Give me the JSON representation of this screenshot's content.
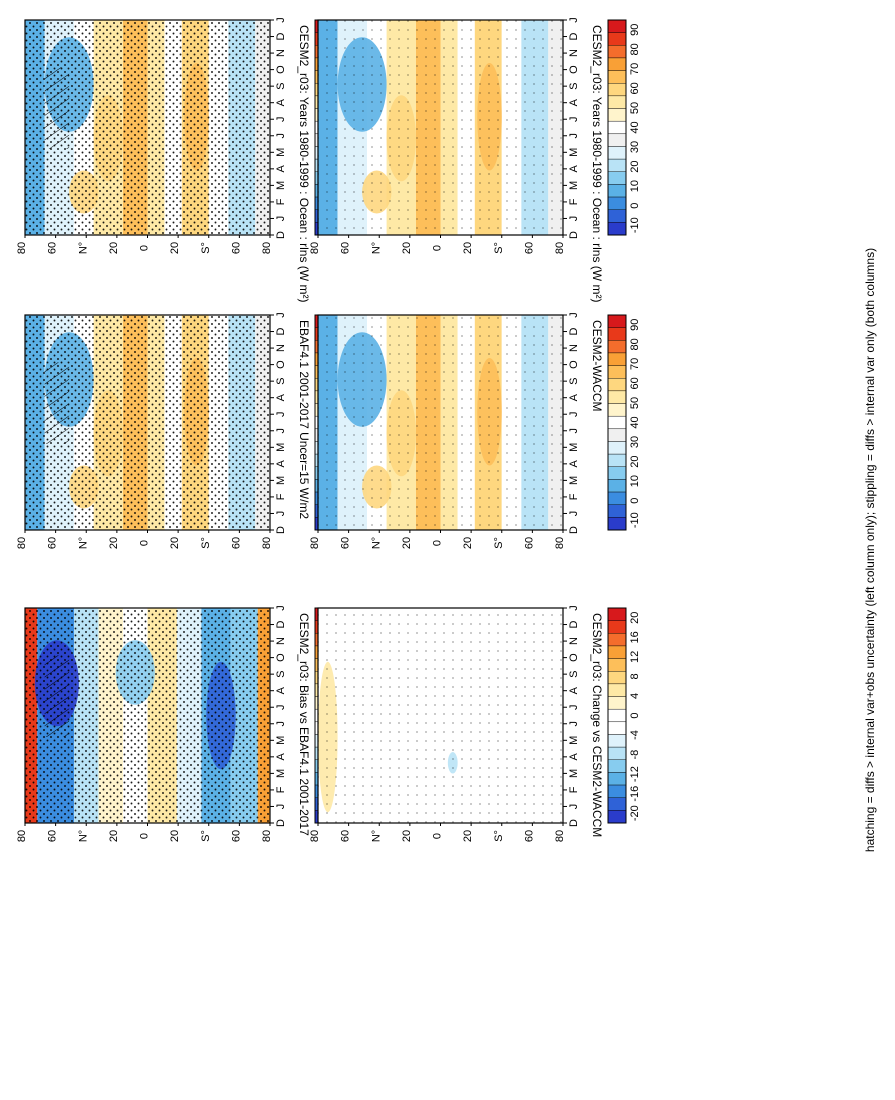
{
  "figure": {
    "caption": "hatching = diffs > internal var+obs uncertainty (left column only); stippling = diffs > internal var only (both columns)",
    "palettes": {
      "absolute": [
        "#d7191c",
        "#e8391a",
        "#f46d2c",
        "#f9a036",
        "#fdbf5a",
        "#fed77f",
        "#fee9a6",
        "#fff4cc",
        "#ffffff",
        "#f0f0f0",
        "#dff2fb",
        "#b9e3f6",
        "#87ccef",
        "#5bb1e6",
        "#3b8de0",
        "#2f62d7",
        "#2a3ccb"
      ],
      "difference": [
        "#d7191c",
        "#e8391a",
        "#f46d2c",
        "#f9a036",
        "#fdbf5a",
        "#fed77f",
        "#fee9a6",
        "#fff4cc",
        "#ffffff",
        "#ffffff",
        "#dff2fb",
        "#b9e3f6",
        "#87ccef",
        "#5bb1e6",
        "#3b8de0",
        "#2f62d7",
        "#2a3ccb"
      ]
    }
  },
  "chart_data": [
    {
      "type": "heatmap",
      "title": "CESM2_r03: Years 1980-1999 : Ocean : rlns (W m²)",
      "field": "abs",
      "x": [
        "D",
        "J",
        "F",
        "M",
        "A",
        "M",
        "J",
        "J",
        "A",
        "S",
        "O",
        "N",
        "D",
        "J"
      ],
      "y": [
        "80",
        "60",
        "N°",
        "20",
        "0",
        "20",
        "S°",
        "60",
        "80"
      ],
      "colorbar": {
        "ticks": [
          "90",
          "80",
          "70",
          "60",
          "50",
          "40",
          "30",
          "20",
          "10",
          "0",
          "-10"
        ],
        "palette": "absolute"
      },
      "stippling": "dense",
      "hatching": true
    },
    {
      "type": "heatmap",
      "title": "CESM2_r03: Years 1980-1999 : Ocean : rlns (W m²)",
      "field": "abs",
      "x": [
        "D",
        "J",
        "F",
        "M",
        "A",
        "M",
        "J",
        "J",
        "A",
        "S",
        "O",
        "N",
        "D",
        "J"
      ],
      "y": [
        "80",
        "60",
        "N°",
        "20",
        "0",
        "20",
        "S°",
        "60",
        "80"
      ],
      "colorbar": {
        "ticks": [
          "90",
          "80",
          "70",
          "60",
          "50",
          "40",
          "30",
          "20",
          "10",
          "0",
          "-10"
        ],
        "palette": "absolute"
      },
      "stippling": "sparse",
      "hatching": false
    },
    {
      "type": "heatmap",
      "title": "EBAF4.1 2001-2017 Uncer=15 W/m2",
      "field": "abs2",
      "x": [
        "D",
        "J",
        "F",
        "M",
        "A",
        "M",
        "J",
        "J",
        "A",
        "S",
        "O",
        "N",
        "D",
        "J"
      ],
      "y": [
        "80",
        "60",
        "N°",
        "20",
        "0",
        "20",
        "S°",
        "60",
        "80"
      ],
      "colorbar": {
        "ticks": [
          "90",
          "80",
          "70",
          "60",
          "50",
          "40",
          "30",
          "20",
          "10",
          "0",
          "-10"
        ],
        "palette": "absolute"
      },
      "stippling": "dense",
      "hatching": true
    },
    {
      "type": "heatmap",
      "title": "CESM2-WACCM",
      "field": "abs",
      "x": [
        "D",
        "J",
        "F",
        "M",
        "A",
        "M",
        "J",
        "J",
        "A",
        "S",
        "O",
        "N",
        "D",
        "J"
      ],
      "y": [
        "80",
        "60",
        "N°",
        "20",
        "0",
        "20",
        "S°",
        "60",
        "80"
      ],
      "colorbar": {
        "ticks": [
          "90",
          "80",
          "70",
          "60",
          "50",
          "40",
          "30",
          "20",
          "10",
          "0",
          "-10"
        ],
        "palette": "absolute"
      },
      "stippling": "sparse",
      "hatching": false
    },
    {
      "type": "heatmap",
      "title": "CESM2_r03: Bias vs EBAF4.1 2001-2017",
      "field": "bias",
      "x": [
        "D",
        "J",
        "F",
        "M",
        "A",
        "M",
        "J",
        "J",
        "A",
        "S",
        "O",
        "N",
        "D",
        "J"
      ],
      "y": [
        "80",
        "60",
        "N°",
        "20",
        "0",
        "20",
        "S°",
        "60",
        "80"
      ],
      "colorbar": {
        "ticks": [
          "20",
          "16",
          "12",
          "8",
          "4",
          "0",
          "-4",
          "-8",
          "-12",
          "-16",
          "-20"
        ],
        "palette": "difference"
      },
      "stippling": "dense",
      "hatching": true
    },
    {
      "type": "heatmap",
      "title": "CESM2_r03: Change vs CESM2-WACCM",
      "field": "change",
      "x": [
        "D",
        "J",
        "F",
        "M",
        "A",
        "M",
        "J",
        "J",
        "A",
        "S",
        "O",
        "N",
        "D",
        "J"
      ],
      "y": [
        "80",
        "60",
        "N°",
        "20",
        "0",
        "20",
        "S°",
        "60",
        "80"
      ],
      "colorbar": {
        "ticks": [
          "20",
          "16",
          "12",
          "8",
          "4",
          "0",
          "-4",
          "-8",
          "-12",
          "-16",
          "-20"
        ],
        "palette": "difference"
      },
      "stippling": "sparse",
      "hatching": false
    }
  ]
}
